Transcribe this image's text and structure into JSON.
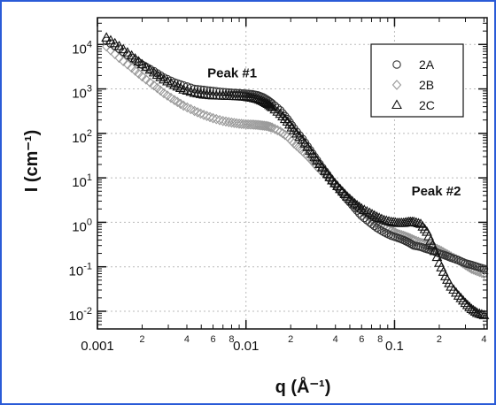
{
  "chart_data": {
    "type": "scatter",
    "title": "",
    "xlabel": "q (Å⁻¹)",
    "ylabel": "I (cm⁻¹)",
    "xscale": "log",
    "yscale": "log",
    "xlim": [
      0.001,
      0.42
    ],
    "ylim": [
      0.004,
      40000
    ],
    "grid": true,
    "legend_position": "top-right",
    "x_ticks": [
      "0.001",
      "0.01",
      "0.1"
    ],
    "x_minor_labels": [
      "2",
      "4",
      "6",
      "8",
      "2",
      "4",
      "6",
      "8",
      "2",
      "4"
    ],
    "y_ticks": [
      {
        "base": "10",
        "exp": "4"
      },
      {
        "base": "10",
        "exp": "3"
      },
      {
        "base": "10",
        "exp": "2"
      },
      {
        "base": "10",
        "exp": "1"
      },
      {
        "base": "10",
        "exp": "0"
      },
      {
        "base": "10",
        "exp": "-1"
      },
      {
        "base": "10",
        "exp": "-2"
      }
    ],
    "annotations": [
      {
        "text": "Peak #1",
        "x": 0.0055,
        "y": 1800
      },
      {
        "text": "Peak #2",
        "x": 0.13,
        "y": 4
      }
    ],
    "series": [
      {
        "name": "2A",
        "marker": "circle",
        "color": "#333333",
        "x": [
          0.00115,
          0.0014,
          0.0017,
          0.002,
          0.0024,
          0.0028,
          0.0033,
          0.0038,
          0.0045,
          0.0052,
          0.006,
          0.007,
          0.008,
          0.009,
          0.01,
          0.011,
          0.012,
          0.013,
          0.014,
          0.015,
          0.017,
          0.019,
          0.021,
          0.024,
          0.027,
          0.03,
          0.034,
          0.038,
          0.043,
          0.048,
          0.054,
          0.06,
          0.068,
          0.076,
          0.085,
          0.095,
          0.105,
          0.115,
          0.125,
          0.135,
          0.15,
          0.165,
          0.18,
          0.2,
          0.22,
          0.24,
          0.27,
          0.3,
          0.33,
          0.36,
          0.4
        ],
        "y": [
          12000,
          8000,
          5000,
          3500,
          2500,
          1800,
          1400,
          1200,
          1000,
          950,
          900,
          850,
          820,
          800,
          780,
          760,
          720,
          650,
          560,
          470,
          330,
          210,
          130,
          75,
          42,
          25,
          14,
          8.5,
          5.2,
          3.3,
          2.1,
          1.4,
          1.0,
          0.75,
          0.6,
          0.5,
          0.45,
          0.4,
          0.35,
          0.3,
          0.28,
          0.25,
          0.23,
          0.2,
          0.18,
          0.16,
          0.14,
          0.12,
          0.11,
          0.1,
          0.09
        ]
      },
      {
        "name": "2B",
        "marker": "diamond",
        "color": "#999999",
        "x": [
          0.00115,
          0.0014,
          0.0017,
          0.002,
          0.0024,
          0.0028,
          0.0033,
          0.0038,
          0.0045,
          0.0052,
          0.006,
          0.007,
          0.008,
          0.009,
          0.01,
          0.011,
          0.012,
          0.013,
          0.014,
          0.015,
          0.017,
          0.019,
          0.021,
          0.024,
          0.027,
          0.03,
          0.034,
          0.038,
          0.043,
          0.048,
          0.054,
          0.06,
          0.068,
          0.076,
          0.085,
          0.095,
          0.105,
          0.115,
          0.125,
          0.135,
          0.15,
          0.165,
          0.18,
          0.2,
          0.22,
          0.24,
          0.27,
          0.3,
          0.33,
          0.36,
          0.4
        ],
        "y": [
          9000,
          5000,
          3000,
          1900,
          1200,
          800,
          560,
          420,
          320,
          260,
          220,
          190,
          175,
          165,
          160,
          158,
          155,
          150,
          145,
          135,
          110,
          85,
          60,
          40,
          27,
          18,
          12,
          8,
          5.5,
          3.8,
          2.6,
          1.8,
          1.3,
          1.0,
          0.8,
          0.65,
          0.55,
          0.5,
          0.45,
          0.4,
          0.35,
          0.32,
          0.28,
          0.24,
          0.2,
          0.17,
          0.14,
          0.11,
          0.09,
          0.08,
          0.07
        ]
      },
      {
        "name": "2C",
        "marker": "triangle",
        "color": "#111111",
        "x": [
          0.00115,
          0.0014,
          0.0017,
          0.002,
          0.0024,
          0.0028,
          0.0033,
          0.0038,
          0.0045,
          0.0052,
          0.006,
          0.007,
          0.008,
          0.009,
          0.01,
          0.011,
          0.012,
          0.013,
          0.014,
          0.015,
          0.017,
          0.019,
          0.021,
          0.024,
          0.027,
          0.03,
          0.034,
          0.038,
          0.043,
          0.048,
          0.054,
          0.06,
          0.068,
          0.076,
          0.085,
          0.095,
          0.105,
          0.115,
          0.125,
          0.135,
          0.15,
          0.165,
          0.18,
          0.2,
          0.22,
          0.24,
          0.27,
          0.3,
          0.33,
          0.36,
          0.4
        ],
        "y": [
          14000,
          9000,
          5500,
          3500,
          2300,
          1600,
          1200,
          950,
          800,
          730,
          700,
          690,
          680,
          670,
          650,
          620,
          580,
          520,
          450,
          380,
          270,
          180,
          115,
          70,
          40,
          24,
          14,
          8.6,
          5.5,
          3.7,
          2.6,
          2.0,
          1.6,
          1.3,
          1.1,
          1.0,
          0.95,
          0.95,
          1.0,
          1.0,
          0.9,
          0.6,
          0.3,
          0.12,
          0.06,
          0.035,
          0.022,
          0.015,
          0.011,
          0.009,
          0.008
        ]
      }
    ]
  }
}
